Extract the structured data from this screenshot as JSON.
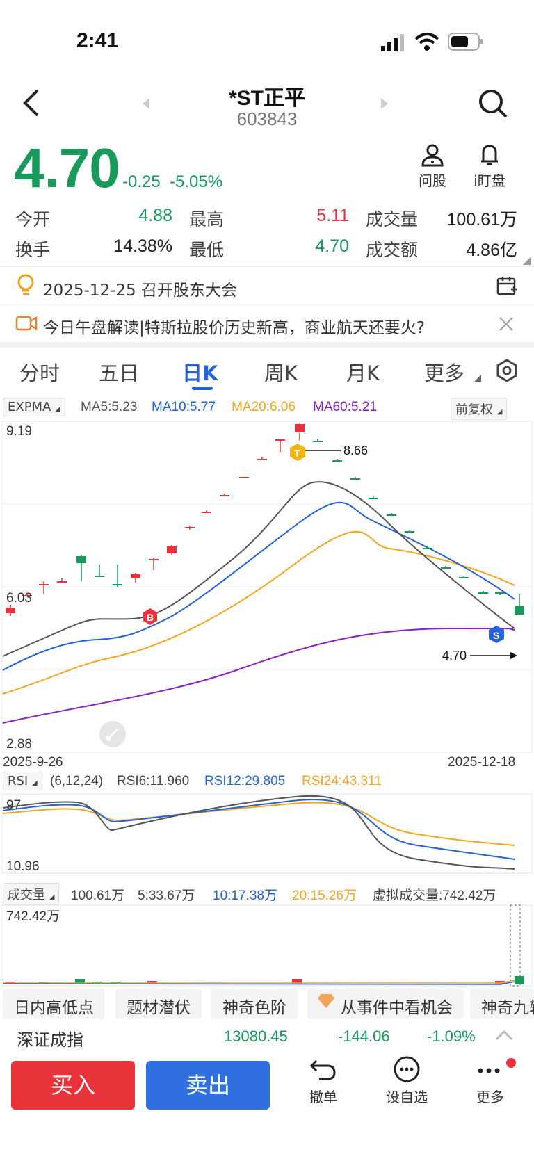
{
  "status_bar": {
    "time": "2:41"
  },
  "header": {
    "title": "*ST正平",
    "code": "603843"
  },
  "quote": {
    "price": "4.70",
    "change": "-0.25",
    "change_pct": "-5.05%"
  },
  "actions": {
    "ask_label": "问股",
    "watch_label": "i盯盘"
  },
  "stats": {
    "open_label": "今开",
    "open": "4.88",
    "high_label": "最高",
    "high": "5.11",
    "volume_label": "成交量",
    "volume": "100.61万",
    "turnover_label": "换手",
    "turnover": "14.38%",
    "low_label": "最低",
    "low": "4.70",
    "amount_label": "成交额",
    "amount": "4.86亿"
  },
  "notices": [
    {
      "text": "2025-12-25 召开股东大会"
    },
    {
      "text": "今日午盘解读|特斯拉股价历史新高，商业航天还要火?"
    }
  ],
  "tabs": [
    {
      "label": "分时"
    },
    {
      "label": "五日"
    },
    {
      "label": "日K"
    },
    {
      "label": "周K"
    },
    {
      "label": "月K"
    },
    {
      "label": "更多"
    }
  ],
  "kline": {
    "indicator": "EXPMA",
    "ma5": "MA5:5.23",
    "ma10": "MA10:5.77",
    "ma20": "MA20:6.06",
    "ma60": "MA60:5.21",
    "adjust": "前复权",
    "y_top": "9.19",
    "y_mid": "6.03",
    "y_bottom": "2.88",
    "high_marker": "8.66",
    "last_marker": "4.70",
    "date_start": "2025-9-26",
    "date_end": "2025-12-18",
    "badge_b": "B",
    "badge_t": "T",
    "badge_s": "S"
  },
  "rsi": {
    "label": "RSI",
    "params": "(6,12,24)",
    "rsi6": "RSI6:11.960",
    "rsi12": "RSI12:29.805",
    "rsi24": "RSI24:43.311",
    "y_top": "97",
    "y_bottom": "10.96"
  },
  "volume": {
    "label": "成交量",
    "current": "100.61万",
    "ma5": "5:33.67万",
    "ma10": "10:17.38万",
    "ma20": "20:15.26万",
    "virtual": "虚拟成交量:742.42万",
    "y_top": "742.42万"
  },
  "chips": [
    {
      "label": "日内高低点"
    },
    {
      "label": "题材潜伏"
    },
    {
      "label": "神奇色阶"
    },
    {
      "label": "从事件中看机会"
    },
    {
      "label": "神奇九转"
    }
  ],
  "index_bar": {
    "name": "深证成指",
    "value": "13080.45",
    "change": "-144.06",
    "change_pct": "-1.09%"
  },
  "bottom": {
    "buy": "买入",
    "sell": "卖出",
    "cancel": "撤单",
    "favorite": "设自选",
    "more": "更多"
  },
  "colors": {
    "up": "#e8333b",
    "down": "#1a9a5a",
    "accent": "#2563d8",
    "ma10": "#2563d8",
    "ma20": "#f5a623",
    "ma60": "#8a1fc8",
    "ma5": "#555555"
  }
}
